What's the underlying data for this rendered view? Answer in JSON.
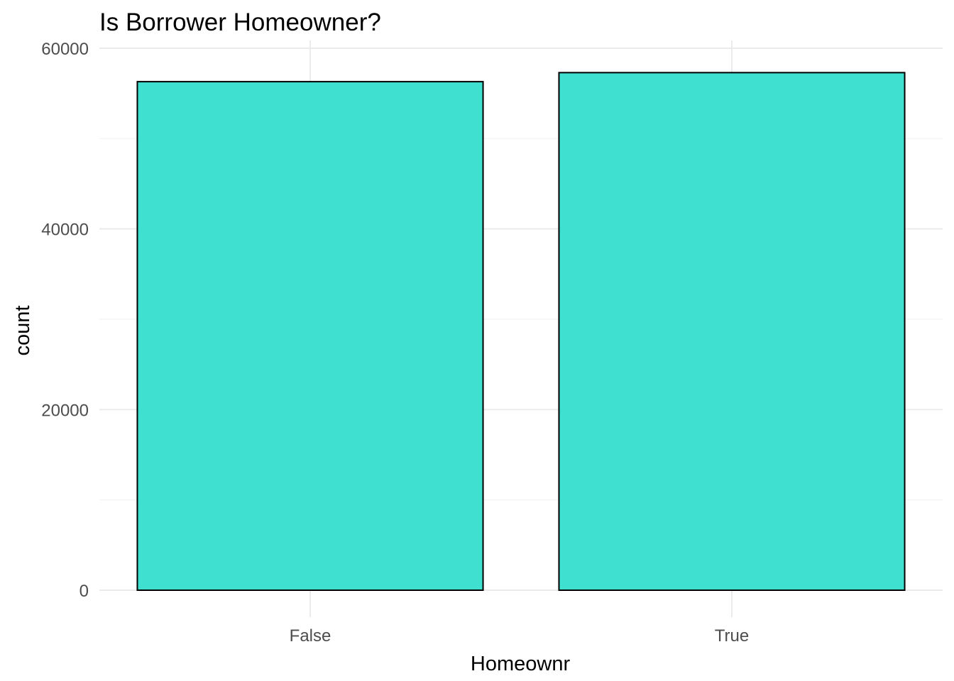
{
  "chart_data": {
    "type": "bar",
    "title": "Is Borrower Homeowner?",
    "xlabel": "Homeownr",
    "ylabel": "count",
    "categories": [
      "False",
      "True"
    ],
    "values": [
      56300,
      57300
    ],
    "ylim": [
      0,
      60000
    ],
    "yticks": [
      0,
      20000,
      40000,
      60000
    ],
    "ytick_labels": [
      "0",
      "20000",
      "40000",
      "60000"
    ],
    "grid": true,
    "legend": "none",
    "bar_color": "#40E0D0",
    "bar_outline": "#000000"
  }
}
